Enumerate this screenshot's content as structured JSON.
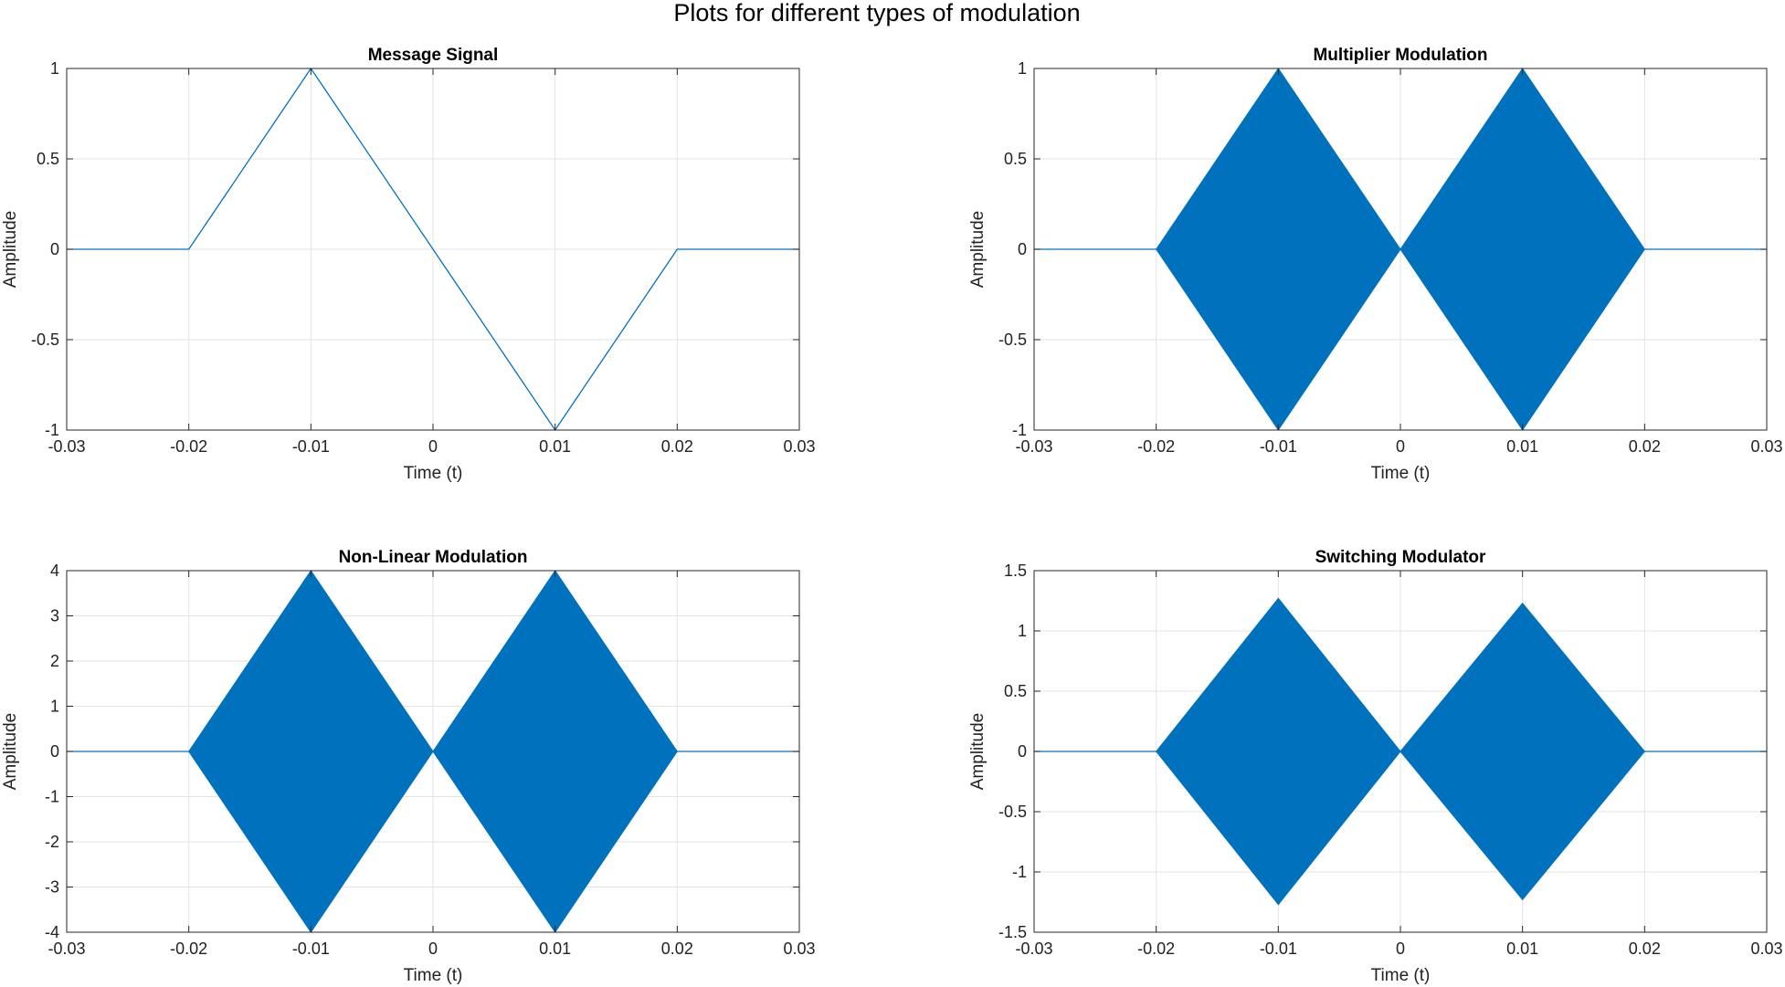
{
  "figure_title": "Plots for different types of modulation",
  "colors": {
    "line": "#0072BD",
    "grid": "#e3e3e3",
    "axes": "#262626"
  },
  "chart_data": [
    {
      "type": "line",
      "title": "Message Signal",
      "xlabel": "Time (t)",
      "ylabel": "Amplitude",
      "xlim": [
        -0.03,
        0.03
      ],
      "ylim": [
        -1,
        1
      ],
      "xticks": [
        -0.03,
        -0.02,
        -0.01,
        0,
        0.01,
        0.02,
        0.03
      ],
      "xtick_labels": [
        "-0.03",
        "-0.02",
        "-0.01",
        "0",
        "0.01",
        "0.02",
        "0.03"
      ],
      "yticks": [
        -1,
        -0.5,
        0,
        0.5,
        1
      ],
      "ytick_labels": [
        "-1",
        "-0.5",
        "0",
        "0.5",
        "1"
      ],
      "grid": true,
      "series": [
        {
          "style": "line",
          "x": [
            -0.03,
            -0.02,
            -0.01,
            0.0,
            0.01,
            0.02,
            0.03
          ],
          "y": [
            0,
            0,
            1,
            0,
            -1,
            0,
            0
          ]
        }
      ]
    },
    {
      "type": "area",
      "title": "Multiplier Modulation",
      "xlabel": "Time (t)",
      "ylabel": "Amplitude",
      "xlim": [
        -0.03,
        0.03
      ],
      "ylim": [
        -1,
        1
      ],
      "xticks": [
        -0.03,
        -0.02,
        -0.01,
        0,
        0.01,
        0.02,
        0.03
      ],
      "xtick_labels": [
        "-0.03",
        "-0.02",
        "-0.01",
        "0",
        "0.01",
        "0.02",
        "0.03"
      ],
      "yticks": [
        -1,
        -0.5,
        0,
        0.5,
        1
      ],
      "ytick_labels": [
        "-1",
        "-0.5",
        "0",
        "0.5",
        "1"
      ],
      "grid": true,
      "series": [
        {
          "style": "envelope",
          "x": [
            -0.03,
            -0.02,
            -0.01,
            0.0,
            0.01,
            0.02,
            0.03
          ],
          "upper": [
            0,
            0,
            1,
            0,
            1,
            0,
            0
          ],
          "lower": [
            0,
            0,
            -1,
            0,
            -1,
            0,
            0
          ]
        }
      ]
    },
    {
      "type": "area",
      "title": "Non-Linear Modulation",
      "xlabel": "Time (t)",
      "ylabel": "Amplitude",
      "xlim": [
        -0.03,
        0.03
      ],
      "ylim": [
        -4,
        4
      ],
      "xticks": [
        -0.03,
        -0.02,
        -0.01,
        0,
        0.01,
        0.02,
        0.03
      ],
      "xtick_labels": [
        "-0.03",
        "-0.02",
        "-0.01",
        "0",
        "0.01",
        "0.02",
        "0.03"
      ],
      "yticks": [
        -4,
        -3,
        -2,
        -1,
        0,
        1,
        2,
        3,
        4
      ],
      "ytick_labels": [
        "-4",
        "-3",
        "-2",
        "-1",
        "0",
        "1",
        "2",
        "3",
        "4"
      ],
      "grid": true,
      "series": [
        {
          "style": "envelope",
          "x": [
            -0.03,
            -0.02,
            -0.01,
            0.0,
            0.01,
            0.02,
            0.03
          ],
          "upper": [
            0,
            0,
            4,
            0,
            4,
            0,
            0
          ],
          "lower": [
            0,
            0,
            -4,
            0,
            -4,
            0,
            0
          ]
        }
      ]
    },
    {
      "type": "area",
      "title": "Switching Modulator",
      "xlabel": "Time (t)",
      "ylabel": "Amplitude",
      "xlim": [
        -0.03,
        0.03
      ],
      "ylim": [
        -1.5,
        1.5
      ],
      "xticks": [
        -0.03,
        -0.02,
        -0.01,
        0,
        0.01,
        0.02,
        0.03
      ],
      "xtick_labels": [
        "-0.03",
        "-0.02",
        "-0.01",
        "0",
        "0.01",
        "0.02",
        "0.03"
      ],
      "yticks": [
        -1.5,
        -1,
        -0.5,
        0,
        0.5,
        1,
        1.5
      ],
      "ytick_labels": [
        "-1.5",
        "-1",
        "-0.5",
        "0",
        "0.5",
        "1",
        "1.5"
      ],
      "grid": true,
      "series": [
        {
          "style": "envelope",
          "x": [
            -0.03,
            -0.02,
            -0.01,
            0.0,
            0.01,
            0.02,
            0.03
          ],
          "upper": [
            0,
            0,
            1.27,
            0,
            1.23,
            0,
            0
          ],
          "lower": [
            0,
            0,
            -1.27,
            0,
            -1.23,
            0,
            0
          ]
        }
      ]
    }
  ]
}
